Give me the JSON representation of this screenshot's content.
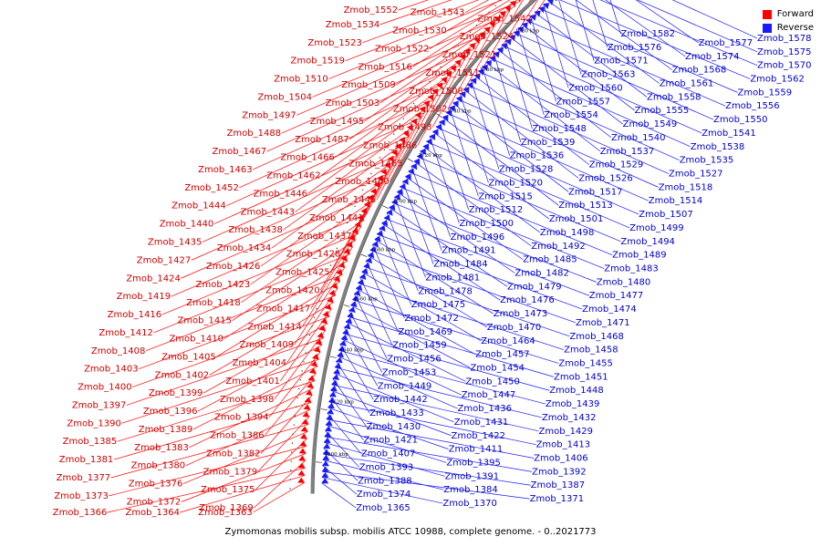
{
  "legend": {
    "forward": {
      "label": "Forward",
      "color": "#ff0000"
    },
    "reverse": {
      "label": "Reverse",
      "color": "#1a1aff"
    }
  },
  "caption": "Zymomonas mobilis subsp. mobilis ATCC 10988, complete genome. - 0..2021773",
  "kbp_marks": [
    "1600 kbp",
    "1620 kbp",
    "1640 kbp",
    "1660 kbp",
    "1680 kbp",
    "1700 kbp",
    "1720 kbp",
    "1740 kbp",
    "1760 kbp",
    "1780 kbp",
    "1800 kbp",
    "1820 kbp"
  ],
  "forward_genes": [
    "Zmob_1363",
    "Zmob_1364",
    "Zmob_1366",
    "Zmob_1369",
    "Zmob_1372",
    "Zmob_1373",
    "Zmob_1375",
    "Zmob_1376",
    "Zmob_1377",
    "Zmob_1379",
    "Zmob_1380",
    "Zmob_1381",
    "Zmob_1382",
    "Zmob_1383",
    "Zmob_1385",
    "Zmob_1386",
    "Zmob_1389",
    "Zmob_1390",
    "Zmob_1394",
    "Zmob_1396",
    "Zmob_1397",
    "Zmob_1398",
    "Zmob_1399",
    "Zmob_1400",
    "Zmob_1401",
    "Zmob_1402",
    "Zmob_1403",
    "Zmob_1404",
    "Zmob_1405",
    "Zmob_1408",
    "Zmob_1409",
    "Zmob_1410",
    "Zmob_1412",
    "Zmob_1414",
    "Zmob_1415",
    "Zmob_1416",
    "Zmob_1417",
    "Zmob_1418",
    "Zmob_1419",
    "Zmob_1420",
    "Zmob_1423",
    "Zmob_1424",
    "Zmob_1425",
    "Zmob_1426",
    "Zmob_1427",
    "Zmob_1428",
    "Zmob_1434",
    "Zmob_1435",
    "Zmob_1437",
    "Zmob_1438",
    "Zmob_1440",
    "Zmob_1441",
    "Zmob_1443",
    "Zmob_1444",
    "Zmob_1445",
    "Zmob_1446",
    "Zmob_1452",
    "Zmob_1460",
    "Zmob_1462",
    "Zmob_1463",
    "Zmob_1465",
    "Zmob_1466",
    "Zmob_1467",
    "Zmob_1486",
    "Zmob_1487",
    "Zmob_1488",
    "Zmob_1493",
    "Zmob_1495",
    "Zmob_1497",
    "Zmob_1502",
    "Zmob_1503",
    "Zmob_1504",
    "Zmob_1508",
    "Zmob_1509",
    "Zmob_1510",
    "Zmob_1511",
    "Zmob_1516",
    "Zmob_1519",
    "Zmob_1521",
    "Zmob_1522",
    "Zmob_1523",
    "Zmob_1524",
    "Zmob_1530",
    "Zmob_1534",
    "Zmob_1542",
    "Zmob_1543",
    "Zmob_1552"
  ],
  "reverse_genes": [
    "Zmob_1365",
    "Zmob_1370",
    "Zmob_1371",
    "Zmob_1374",
    "Zmob_1384",
    "Zmob_1387",
    "Zmob_1388",
    "Zmob_1391",
    "Zmob_1392",
    "Zmob_1393",
    "Zmob_1395",
    "Zmob_1406",
    "Zmob_1407",
    "Zmob_1411",
    "Zmob_1413",
    "Zmob_1421",
    "Zmob_1422",
    "Zmob_1429",
    "Zmob_1430",
    "Zmob_1431",
    "Zmob_1432",
    "Zmob_1433",
    "Zmob_1436",
    "Zmob_1439",
    "Zmob_1442",
    "Zmob_1447",
    "Zmob_1448",
    "Zmob_1449",
    "Zmob_1450",
    "Zmob_1451",
    "Zmob_1453",
    "Zmob_1454",
    "Zmob_1455",
    "Zmob_1456",
    "Zmob_1457",
    "Zmob_1458",
    "Zmob_1459",
    "Zmob_1464",
    "Zmob_1468",
    "Zmob_1469",
    "Zmob_1470",
    "Zmob_1471",
    "Zmob_1472",
    "Zmob_1473",
    "Zmob_1474",
    "Zmob_1475",
    "Zmob_1476",
    "Zmob_1477",
    "Zmob_1478",
    "Zmob_1479",
    "Zmob_1480",
    "Zmob_1481",
    "Zmob_1482",
    "Zmob_1483",
    "Zmob_1484",
    "Zmob_1485",
    "Zmob_1489",
    "Zmob_1491",
    "Zmob_1492",
    "Zmob_1494",
    "Zmob_1496",
    "Zmob_1498",
    "Zmob_1499",
    "Zmob_1500",
    "Zmob_1501",
    "Zmob_1507",
    "Zmob_1512",
    "Zmob_1513",
    "Zmob_1514",
    "Zmob_1515",
    "Zmob_1517",
    "Zmob_1518",
    "Zmob_1520",
    "Zmob_1526",
    "Zmob_1527",
    "Zmob_1528",
    "Zmob_1529",
    "Zmob_1535",
    "Zmob_1536",
    "Zmob_1537",
    "Zmob_1538",
    "Zmob_1539",
    "Zmob_1540",
    "Zmob_1541",
    "Zmob_1548",
    "Zmob_1549",
    "Zmob_1550",
    "Zmob_1554",
    "Zmob_1555",
    "Zmob_1556",
    "Zmob_1557",
    "Zmob_1558",
    "Zmob_1559",
    "Zmob_1560",
    "Zmob_1561",
    "Zmob_1562",
    "Zmob_1563",
    "Zmob_1568",
    "Zmob_1570",
    "Zmob_1571",
    "Zmob_1574",
    "Zmob_1575",
    "Zmob_1576",
    "Zmob_1577",
    "Zmob_1578",
    "Zmob_1582"
  ]
}
